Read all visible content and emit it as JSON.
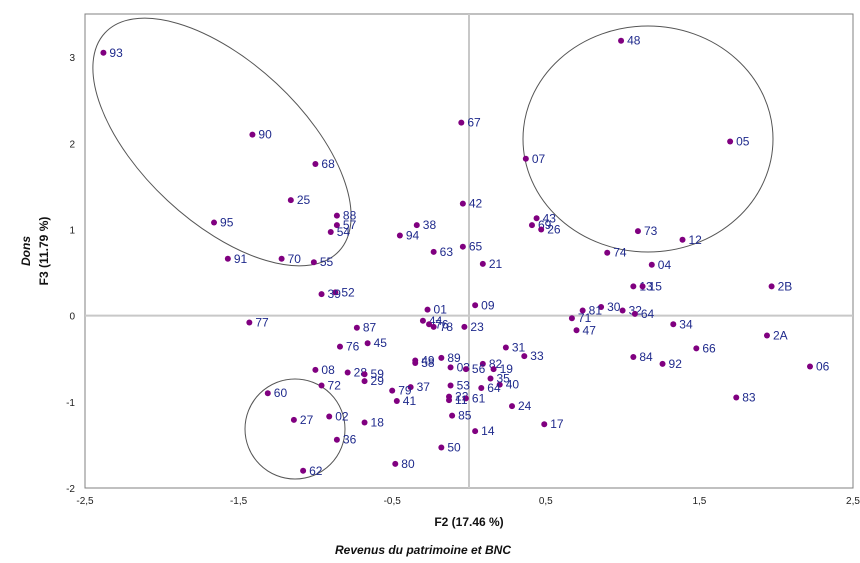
{
  "chart_data": {
    "type": "scatter",
    "xlabel": "F2 (17.46 %)",
    "x_caption": "Revenus du patrimoine et BNC",
    "ylabel": "F3 (11.79 %)",
    "y_caption": "Dons",
    "xlim": [
      -2.5,
      2.5
    ],
    "ylim": [
      -2,
      3.5
    ],
    "x_ticks": [
      "-2,5",
      "-1,5",
      "-0,5",
      "0,5",
      "1,5",
      "2,5"
    ],
    "y_ticks": [
      "-2",
      "-1",
      "0",
      "1",
      "2",
      "3"
    ],
    "grid": false,
    "marker_color": "#800080",
    "label_color": "#1f2a8c",
    "points": [
      {
        "label": "93",
        "x": -2.38,
        "y": 3.05
      },
      {
        "label": "90",
        "x": -1.41,
        "y": 2.1
      },
      {
        "label": "68",
        "x": -1.0,
        "y": 1.76
      },
      {
        "label": "25",
        "x": -1.16,
        "y": 1.34
      },
      {
        "label": "95",
        "x": -1.66,
        "y": 1.08
      },
      {
        "label": "88",
        "x": -0.86,
        "y": 1.16
      },
      {
        "label": "57",
        "x": -0.86,
        "y": 1.05
      },
      {
        "label": "54",
        "x": -0.9,
        "y": 0.97
      },
      {
        "label": "91",
        "x": -1.57,
        "y": 0.66
      },
      {
        "label": "70",
        "x": -1.22,
        "y": 0.66
      },
      {
        "label": "55",
        "x": -1.01,
        "y": 0.62
      },
      {
        "label": "52",
        "x": -0.87,
        "y": 0.27
      },
      {
        "label": "39",
        "x": -0.96,
        "y": 0.25
      },
      {
        "label": "77",
        "x": -1.43,
        "y": -0.08
      },
      {
        "label": "48",
        "x": 0.99,
        "y": 3.19
      },
      {
        "label": "05",
        "x": 1.7,
        "y": 2.02
      },
      {
        "label": "07",
        "x": 0.37,
        "y": 1.82
      },
      {
        "label": "67",
        "x": -0.05,
        "y": 2.24
      },
      {
        "label": "43",
        "x": 0.44,
        "y": 1.13
      },
      {
        "label": "69",
        "x": 0.41,
        "y": 1.05
      },
      {
        "label": "26",
        "x": 0.47,
        "y": 1.0
      },
      {
        "label": "73",
        "x": 1.1,
        "y": 0.98
      },
      {
        "label": "12",
        "x": 1.39,
        "y": 0.88
      },
      {
        "label": "74",
        "x": 0.9,
        "y": 0.73
      },
      {
        "label": "04",
        "x": 1.19,
        "y": 0.59
      },
      {
        "label": "13",
        "x": 1.07,
        "y": 0.34
      },
      {
        "label": "15",
        "x": 1.13,
        "y": 0.34
      },
      {
        "label": "2B",
        "x": 1.97,
        "y": 0.34
      },
      {
        "label": "42",
        "x": -0.04,
        "y": 1.3
      },
      {
        "label": "38",
        "x": -0.34,
        "y": 1.05
      },
      {
        "label": "94",
        "x": -0.45,
        "y": 0.93
      },
      {
        "label": "63",
        "x": -0.23,
        "y": 0.74
      },
      {
        "label": "65",
        "x": -0.04,
        "y": 0.8
      },
      {
        "label": "21",
        "x": 0.09,
        "y": 0.6
      },
      {
        "label": "09",
        "x": 0.04,
        "y": 0.12
      },
      {
        "label": "01",
        "x": -0.27,
        "y": 0.07
      },
      {
        "label": "30",
        "x": 0.86,
        "y": 0.1
      },
      {
        "label": "32",
        "x": 1.0,
        "y": 0.06
      },
      {
        "label": "64",
        "x": 1.08,
        "y": 0.02
      },
      {
        "label": "81",
        "x": 0.74,
        "y": 0.06
      },
      {
        "label": "71",
        "x": 0.67,
        "y": -0.03
      },
      {
        "label": "47",
        "x": 0.7,
        "y": -0.17
      },
      {
        "label": "34",
        "x": 1.33,
        "y": -0.1
      },
      {
        "label": "66",
        "x": 1.48,
        "y": -0.38
      },
      {
        "label": "2A",
        "x": 1.94,
        "y": -0.23
      },
      {
        "label": "06",
        "x": 2.22,
        "y": -0.59
      },
      {
        "label": "84",
        "x": 1.07,
        "y": -0.48
      },
      {
        "label": "92",
        "x": 1.26,
        "y": -0.56
      },
      {
        "label": "83",
        "x": 1.74,
        "y": -0.95
      },
      {
        "label": "44",
        "x": -0.3,
        "y": -0.06
      },
      {
        "label": "76",
        "x": -0.26,
        "y": -0.1
      },
      {
        "label": "78",
        "x": -0.23,
        "y": -0.13
      },
      {
        "label": "23",
        "x": -0.03,
        "y": -0.13
      },
      {
        "label": "87",
        "x": -0.73,
        "y": -0.14
      },
      {
        "label": "45",
        "x": -0.66,
        "y": -0.32
      },
      {
        "label": "76",
        "x": -0.84,
        "y": -0.36
      },
      {
        "label": "31",
        "x": 0.24,
        "y": -0.37
      },
      {
        "label": "33",
        "x": 0.36,
        "y": -0.47
      },
      {
        "label": "49",
        "x": -0.35,
        "y": -0.52
      },
      {
        "label": "58",
        "x": -0.35,
        "y": -0.55
      },
      {
        "label": "89",
        "x": -0.18,
        "y": -0.49
      },
      {
        "label": "82",
        "x": 0.09,
        "y": -0.56
      },
      {
        "label": "19",
        "x": 0.16,
        "y": -0.62
      },
      {
        "label": "03",
        "x": -0.12,
        "y": -0.6
      },
      {
        "label": "56",
        "x": -0.02,
        "y": -0.62
      },
      {
        "label": "08",
        "x": -1.0,
        "y": -0.63
      },
      {
        "label": "28",
        "x": -0.79,
        "y": -0.66
      },
      {
        "label": "59",
        "x": -0.68,
        "y": -0.68
      },
      {
        "label": "29",
        "x": -0.68,
        "y": -0.76
      },
      {
        "label": "72",
        "x": -0.96,
        "y": -0.81
      },
      {
        "label": "37",
        "x": -0.38,
        "y": -0.83
      },
      {
        "label": "79",
        "x": -0.5,
        "y": -0.87
      },
      {
        "label": "53",
        "x": -0.12,
        "y": -0.81
      },
      {
        "label": "40",
        "x": 0.2,
        "y": -0.8
      },
      {
        "label": "35",
        "x": 0.14,
        "y": -0.73
      },
      {
        "label": "64",
        "x": 0.08,
        "y": -0.84
      },
      {
        "label": "41",
        "x": -0.47,
        "y": -0.99
      },
      {
        "label": "22",
        "x": -0.13,
        "y": -0.94
      },
      {
        "label": "61",
        "x": -0.02,
        "y": -0.96
      },
      {
        "label": "11",
        "x": -0.13,
        "y": -0.98
      },
      {
        "label": "24",
        "x": 0.28,
        "y": -1.05
      },
      {
        "label": "85",
        "x": -0.11,
        "y": -1.16
      },
      {
        "label": "18",
        "x": -0.68,
        "y": -1.24
      },
      {
        "label": "17",
        "x": 0.49,
        "y": -1.26
      },
      {
        "label": "14",
        "x": 0.04,
        "y": -1.34
      },
      {
        "label": "50",
        "x": -0.18,
        "y": -1.53
      },
      {
        "label": "80",
        "x": -0.48,
        "y": -1.72
      },
      {
        "label": "60",
        "x": -1.31,
        "y": -0.9
      },
      {
        "label": "27",
        "x": -1.14,
        "y": -1.21
      },
      {
        "label": "02",
        "x": -0.91,
        "y": -1.17
      },
      {
        "label": "36",
        "x": -0.86,
        "y": -1.44
      },
      {
        "label": "62",
        "x": -1.08,
        "y": -1.8
      }
    ]
  }
}
